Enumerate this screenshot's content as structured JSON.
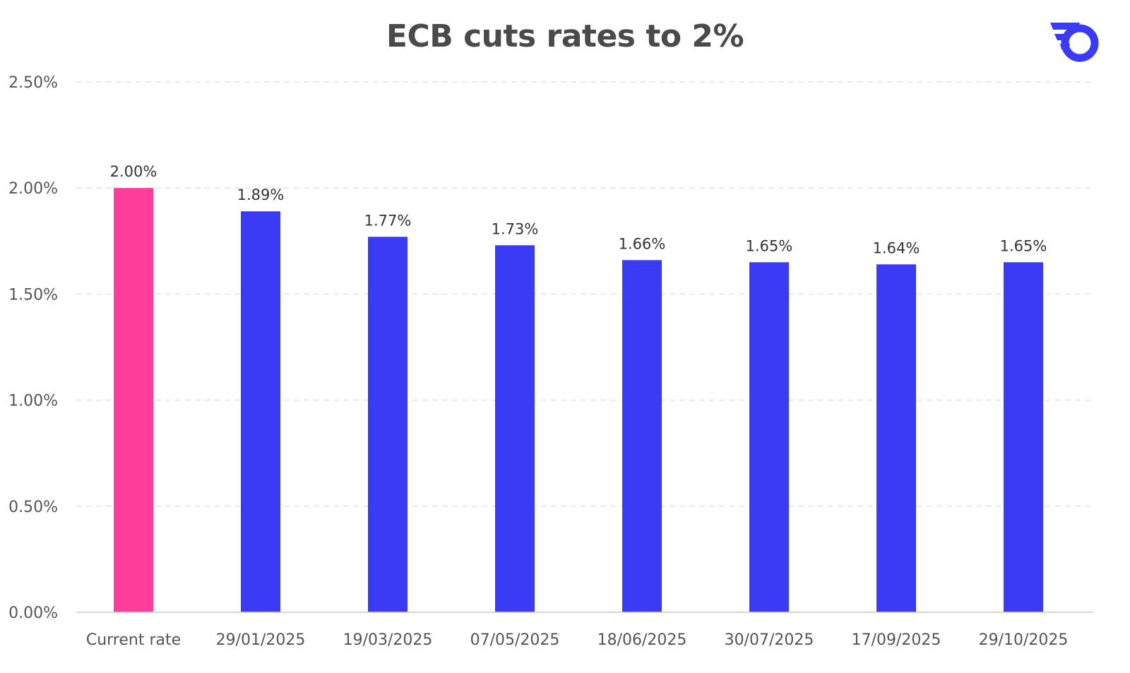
{
  "chart_data": {
    "type": "bar",
    "title": "ECB cuts rates to 2%",
    "xlabel": "",
    "ylabel": "",
    "categories": [
      "Current rate",
      "29/01/2025",
      "19/03/2025",
      "07/05/2025",
      "18/06/2025",
      "30/07/2025",
      "17/09/2025",
      "29/10/2025"
    ],
    "values": [
      2.0,
      1.89,
      1.77,
      1.73,
      1.66,
      1.65,
      1.64,
      1.65
    ],
    "data_labels": [
      "2.00%",
      "1.89%",
      "1.77%",
      "1.73%",
      "1.66%",
      "1.65%",
      "1.64%",
      "1.65%"
    ],
    "ylim": [
      0,
      2.5
    ],
    "yticks": [
      0,
      0.5,
      1.0,
      1.5,
      2.0,
      2.5
    ],
    "ytick_labels": [
      "0.00%",
      "0.50%",
      "1.00%",
      "1.50%",
      "2.00%",
      "2.50%"
    ],
    "grid": true,
    "legend": "none",
    "colors": {
      "highlight": "#ff3d9a",
      "bar": "#3b3af5",
      "grid": "#e3e3e3",
      "axis": "#cccccc"
    }
  },
  "logo": {
    "icon": "brand-logo-icon",
    "color": "#3b3af5"
  }
}
